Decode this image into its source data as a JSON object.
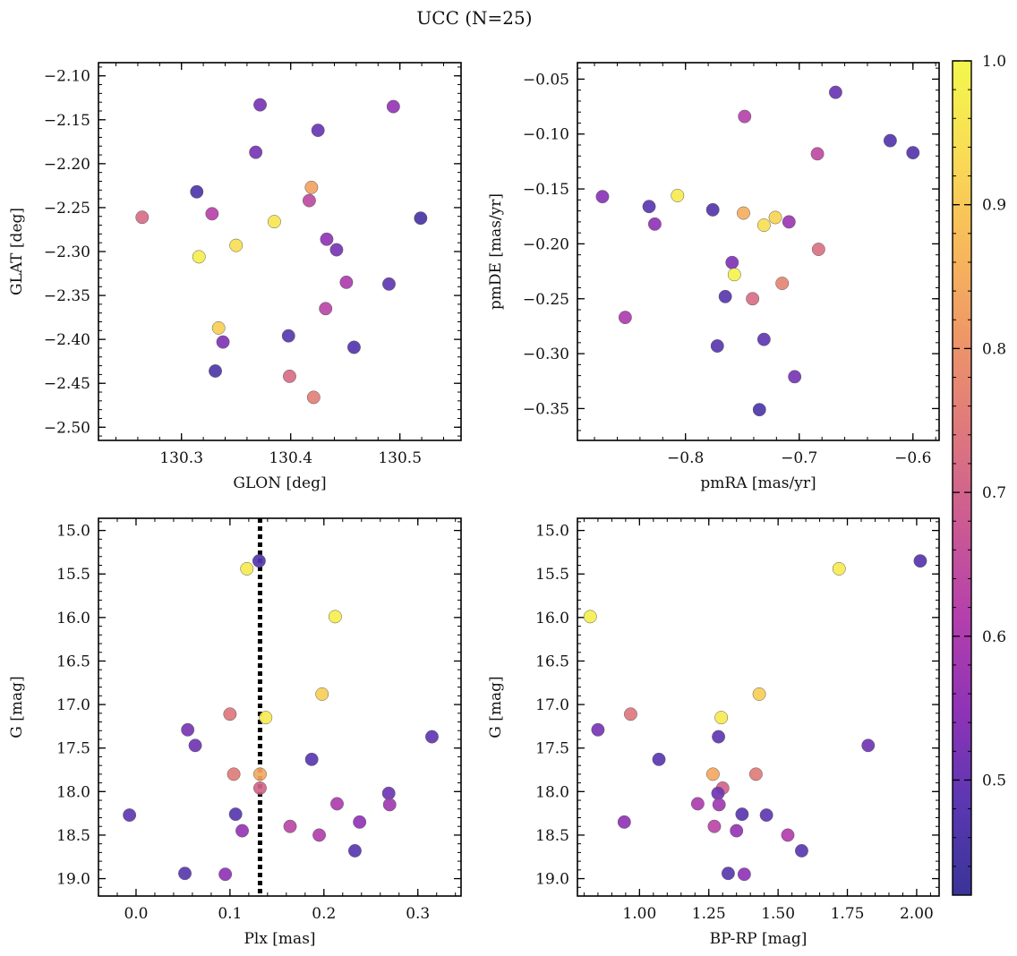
{
  "title": "UCC (N=25)",
  "colorbar": {
    "range": [
      0.42,
      1.0
    ],
    "ticks": [
      0.5,
      0.6,
      0.7,
      0.8,
      0.9,
      1.0
    ],
    "tick_labels": [
      "0.5",
      "0.6",
      "0.7",
      "0.8",
      "0.9",
      "1.0"
    ],
    "colormap": "plasma",
    "colormap_stops": [
      "#3a3498",
      "#5b37b2",
      "#8f33b6",
      "#b43fad",
      "#cb5a93",
      "#de787d",
      "#ee9668",
      "#f8b95a",
      "#f9dc55",
      "#f3f74d"
    ]
  },
  "chart_data": [
    {
      "type": "scatter",
      "id": "glon-glat",
      "xlabel": "GLON [deg]",
      "ylabel": "GLAT [deg]",
      "xlim": [
        130.224,
        130.556
      ],
      "ylim": [
        -2.515,
        -2.085
      ],
      "y_inverted": false,
      "xticks": [
        130.3,
        130.4,
        130.5
      ],
      "xtick_labels": [
        "130.3",
        "130.4",
        "130.5"
      ],
      "yticks": [
        -2.1,
        -2.15,
        -2.2,
        -2.25,
        -2.3,
        -2.35,
        -2.4,
        -2.45,
        -2.5
      ],
      "ytick_labels": [
        "−2.10",
        "−2.15",
        "−2.20",
        "−2.25",
        "−2.30",
        "−2.35",
        "−2.40",
        "−2.45",
        "−2.50"
      ],
      "points": [
        {
          "x": 130.372,
          "y": -2.133,
          "c": 0.52
        },
        {
          "x": 130.494,
          "y": -2.135,
          "c": 0.56
        },
        {
          "x": 130.425,
          "y": -2.162,
          "c": 0.5
        },
        {
          "x": 130.368,
          "y": -2.187,
          "c": 0.52
        },
        {
          "x": 130.419,
          "y": -2.227,
          "c": 0.83
        },
        {
          "x": 130.314,
          "y": -2.232,
          "c": 0.46
        },
        {
          "x": 130.417,
          "y": -2.242,
          "c": 0.64
        },
        {
          "x": 130.328,
          "y": -2.257,
          "c": 0.62
        },
        {
          "x": 130.264,
          "y": -2.261,
          "c": 0.72
        },
        {
          "x": 130.519,
          "y": -2.262,
          "c": 0.45
        },
        {
          "x": 130.385,
          "y": -2.266,
          "c": 0.96
        },
        {
          "x": 130.433,
          "y": -2.286,
          "c": 0.55
        },
        {
          "x": 130.35,
          "y": -2.293,
          "c": 0.94
        },
        {
          "x": 130.442,
          "y": -2.298,
          "c": 0.52
        },
        {
          "x": 130.316,
          "y": -2.306,
          "c": 0.98
        },
        {
          "x": 130.451,
          "y": -2.335,
          "c": 0.6
        },
        {
          "x": 130.49,
          "y": -2.337,
          "c": 0.49
        },
        {
          "x": 130.432,
          "y": -2.365,
          "c": 0.63
        },
        {
          "x": 130.334,
          "y": -2.387,
          "c": 0.91
        },
        {
          "x": 130.398,
          "y": -2.396,
          "c": 0.48
        },
        {
          "x": 130.338,
          "y": -2.403,
          "c": 0.53
        },
        {
          "x": 130.458,
          "y": -2.409,
          "c": 0.47
        },
        {
          "x": 130.331,
          "y": -2.436,
          "c": 0.46
        },
        {
          "x": 130.399,
          "y": -2.442,
          "c": 0.72
        },
        {
          "x": 130.421,
          "y": -2.466,
          "c": 0.76
        }
      ]
    },
    {
      "type": "scatter",
      "id": "pmra-pmde",
      "xlabel": "pmRA [mas/yr]",
      "ylabel": "pmDE [mas/yr]",
      "xlim": [
        -0.895,
        -0.577
      ],
      "ylim": [
        -0.379,
        -0.035
      ],
      "y_inverted": false,
      "xticks": [
        -0.8,
        -0.7,
        -0.6
      ],
      "xtick_labels": [
        "−0.8",
        "−0.7",
        "−0.6"
      ],
      "yticks": [
        -0.05,
        -0.1,
        -0.15,
        -0.2,
        -0.25,
        -0.3,
        -0.35
      ],
      "ytick_labels": [
        "−0.05",
        "−0.10",
        "−0.15",
        "−0.20",
        "−0.25",
        "−0.30",
        "−0.35"
      ],
      "points": [
        {
          "x": -0.668,
          "y": -0.062,
          "c": 0.5
        },
        {
          "x": -0.748,
          "y": -0.084,
          "c": 0.62
        },
        {
          "x": -0.62,
          "y": -0.106,
          "c": 0.47
        },
        {
          "x": -0.6,
          "y": -0.117,
          "c": 0.47
        },
        {
          "x": -0.684,
          "y": -0.118,
          "c": 0.64
        },
        {
          "x": -0.873,
          "y": -0.157,
          "c": 0.54
        },
        {
          "x": -0.807,
          "y": -0.156,
          "c": 0.97
        },
        {
          "x": -0.832,
          "y": -0.166,
          "c": 0.48
        },
        {
          "x": -0.776,
          "y": -0.169,
          "c": 0.47
        },
        {
          "x": -0.749,
          "y": -0.172,
          "c": 0.85
        },
        {
          "x": -0.721,
          "y": -0.176,
          "c": 0.92
        },
        {
          "x": -0.709,
          "y": -0.18,
          "c": 0.57
        },
        {
          "x": -0.827,
          "y": -0.182,
          "c": 0.55
        },
        {
          "x": -0.731,
          "y": -0.183,
          "c": 0.94
        },
        {
          "x": -0.683,
          "y": -0.205,
          "c": 0.73
        },
        {
          "x": -0.759,
          "y": -0.217,
          "c": 0.53
        },
        {
          "x": -0.757,
          "y": -0.228,
          "c": 0.99
        },
        {
          "x": -0.715,
          "y": -0.236,
          "c": 0.77
        },
        {
          "x": -0.765,
          "y": -0.248,
          "c": 0.48
        },
        {
          "x": -0.741,
          "y": -0.25,
          "c": 0.72
        },
        {
          "x": -0.853,
          "y": -0.267,
          "c": 0.6
        },
        {
          "x": -0.731,
          "y": -0.287,
          "c": 0.49
        },
        {
          "x": -0.772,
          "y": -0.293,
          "c": 0.48
        },
        {
          "x": -0.704,
          "y": -0.321,
          "c": 0.52
        },
        {
          "x": -0.735,
          "y": -0.351,
          "c": 0.46
        }
      ]
    },
    {
      "type": "scatter",
      "id": "plx-g",
      "xlabel": "Plx [mas]",
      "ylabel": "G [mag]",
      "xlim": [
        -0.04,
        0.346
      ],
      "ylim": [
        14.86,
        19.2
      ],
      "y_inverted": true,
      "vline": 0.132,
      "xticks": [
        0.0,
        0.1,
        0.2,
        0.3
      ],
      "xtick_labels": [
        "0.0",
        "0.1",
        "0.2",
        "0.3"
      ],
      "yticks": [
        15.0,
        15.5,
        16.0,
        16.5,
        17.0,
        17.5,
        18.0,
        18.5,
        19.0
      ],
      "ytick_labels": [
        "15.0",
        "15.5",
        "16.0",
        "16.5",
        "17.0",
        "17.5",
        "18.0",
        "18.5",
        "19.0"
      ],
      "points": [
        {
          "x": 0.131,
          "y": 15.35,
          "c": 0.47
        },
        {
          "x": 0.118,
          "y": 15.44,
          "c": 0.97
        },
        {
          "x": 0.212,
          "y": 15.99,
          "c": 0.98
        },
        {
          "x": 0.198,
          "y": 16.88,
          "c": 0.91
        },
        {
          "x": 0.1,
          "y": 17.11,
          "c": 0.74
        },
        {
          "x": 0.138,
          "y": 17.15,
          "c": 0.97
        },
        {
          "x": 0.055,
          "y": 17.29,
          "c": 0.52
        },
        {
          "x": 0.315,
          "y": 17.37,
          "c": 0.49
        },
        {
          "x": 0.063,
          "y": 17.47,
          "c": 0.51
        },
        {
          "x": 0.187,
          "y": 17.63,
          "c": 0.48
        },
        {
          "x": 0.104,
          "y": 17.8,
          "c": 0.75
        },
        {
          "x": 0.132,
          "y": 17.8,
          "c": 0.84
        },
        {
          "x": 0.132,
          "y": 17.96,
          "c": 0.7
        },
        {
          "x": 0.269,
          "y": 18.02,
          "c": 0.51
        },
        {
          "x": 0.214,
          "y": 18.14,
          "c": 0.6
        },
        {
          "x": 0.27,
          "y": 18.15,
          "c": 0.58
        },
        {
          "x": -0.007,
          "y": 18.27,
          "c": 0.49
        },
        {
          "x": 0.106,
          "y": 18.26,
          "c": 0.48
        },
        {
          "x": 0.238,
          "y": 18.35,
          "c": 0.55
        },
        {
          "x": 0.164,
          "y": 18.4,
          "c": 0.63
        },
        {
          "x": 0.113,
          "y": 18.45,
          "c": 0.56
        },
        {
          "x": 0.195,
          "y": 18.5,
          "c": 0.61
        },
        {
          "x": 0.233,
          "y": 18.68,
          "c": 0.48
        },
        {
          "x": 0.052,
          "y": 18.94,
          "c": 0.48
        },
        {
          "x": 0.095,
          "y": 18.95,
          "c": 0.55
        }
      ]
    },
    {
      "type": "scatter",
      "id": "bprp-g",
      "xlabel": "BP-RP [mag]",
      "ylabel": "G [mag]",
      "xlim": [
        0.776,
        2.081
      ],
      "ylim": [
        14.86,
        19.2
      ],
      "y_inverted": true,
      "xticks": [
        1.0,
        1.25,
        1.5,
        1.75,
        2.0
      ],
      "xtick_labels": [
        "1.00",
        "1.25",
        "1.50",
        "1.75",
        "2.00"
      ],
      "yticks": [
        15.0,
        15.5,
        16.0,
        16.5,
        17.0,
        17.5,
        18.0,
        18.5,
        19.0
      ],
      "ytick_labels": [
        "15.0",
        "15.5",
        "16.0",
        "16.5",
        "17.0",
        "17.5",
        "18.0",
        "18.5",
        "19.0"
      ],
      "points": [
        {
          "x": 2.013,
          "y": 15.35,
          "c": 0.47
        },
        {
          "x": 1.72,
          "y": 15.44,
          "c": 0.97
        },
        {
          "x": 0.822,
          "y": 15.99,
          "c": 0.98
        },
        {
          "x": 1.432,
          "y": 16.88,
          "c": 0.91
        },
        {
          "x": 0.968,
          "y": 17.11,
          "c": 0.74
        },
        {
          "x": 1.295,
          "y": 17.15,
          "c": 0.97
        },
        {
          "x": 0.85,
          "y": 17.29,
          "c": 0.52
        },
        {
          "x": 1.285,
          "y": 17.37,
          "c": 0.49
        },
        {
          "x": 1.825,
          "y": 17.47,
          "c": 0.51
        },
        {
          "x": 1.07,
          "y": 17.63,
          "c": 0.48
        },
        {
          "x": 1.265,
          "y": 17.8,
          "c": 0.84
        },
        {
          "x": 1.42,
          "y": 17.8,
          "c": 0.75
        },
        {
          "x": 1.3,
          "y": 17.96,
          "c": 0.7
        },
        {
          "x": 1.283,
          "y": 18.02,
          "c": 0.51
        },
        {
          "x": 1.21,
          "y": 18.14,
          "c": 0.6
        },
        {
          "x": 1.287,
          "y": 18.15,
          "c": 0.58
        },
        {
          "x": 1.37,
          "y": 18.26,
          "c": 0.48
        },
        {
          "x": 1.458,
          "y": 18.27,
          "c": 0.49
        },
        {
          "x": 0.945,
          "y": 18.35,
          "c": 0.55
        },
        {
          "x": 1.27,
          "y": 18.4,
          "c": 0.63
        },
        {
          "x": 1.35,
          "y": 18.45,
          "c": 0.56
        },
        {
          "x": 1.535,
          "y": 18.5,
          "c": 0.61
        },
        {
          "x": 1.585,
          "y": 18.68,
          "c": 0.48
        },
        {
          "x": 1.32,
          "y": 18.94,
          "c": 0.48
        },
        {
          "x": 1.378,
          "y": 18.95,
          "c": 0.55
        }
      ]
    }
  ]
}
